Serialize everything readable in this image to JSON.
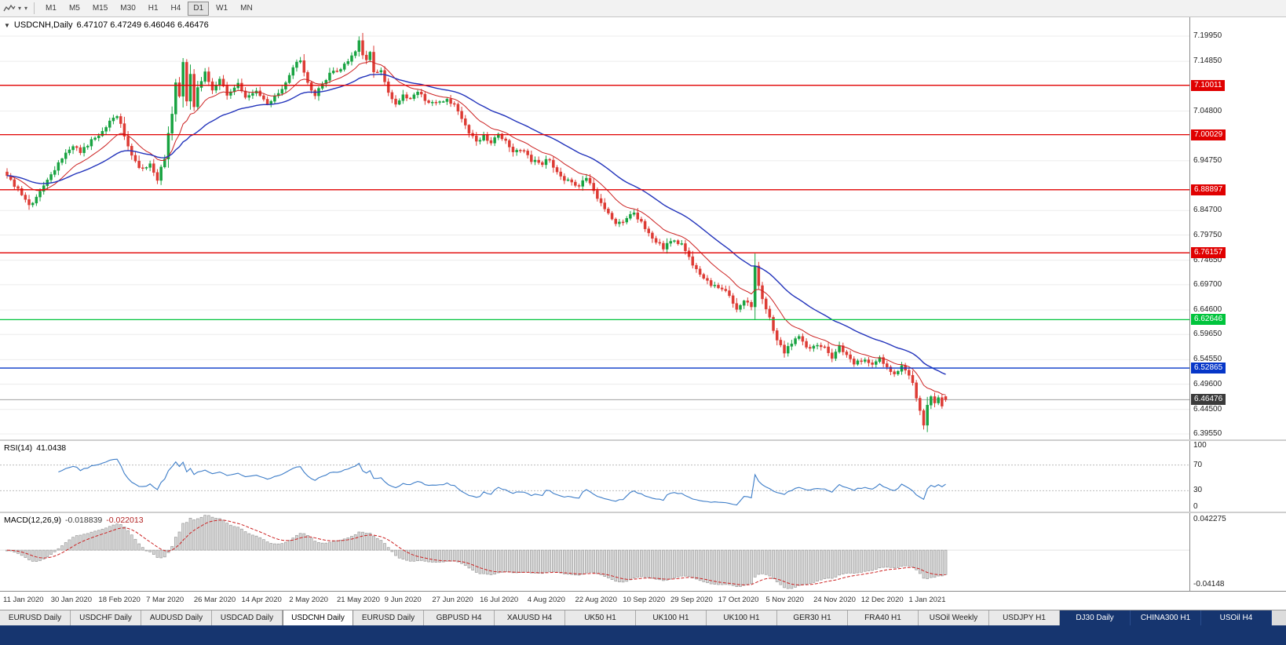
{
  "icons": {
    "caret_down": "▾",
    "collapse": "▼"
  },
  "toolbar": {
    "timeframes": [
      {
        "label": "M1",
        "active": false
      },
      {
        "label": "M5",
        "active": false
      },
      {
        "label": "M15",
        "active": false
      },
      {
        "label": "M30",
        "active": false
      },
      {
        "label": "H1",
        "active": false
      },
      {
        "label": "H4",
        "active": false
      },
      {
        "label": "D1",
        "active": true
      },
      {
        "label": "W1",
        "active": false
      },
      {
        "label": "MN",
        "active": false
      }
    ]
  },
  "symbol_line": {
    "symbol": "USDCNH,Daily",
    "ohlc": "6.47107 6.47249 6.46046 6.46476"
  },
  "price_axis": {
    "ticks": [
      "7.19950",
      "7.14850",
      "7.04800",
      "6.94750",
      "6.84700",
      "6.79750",
      "6.74650",
      "6.69700",
      "6.64600",
      "6.59650",
      "6.54550",
      "6.49600",
      "6.44500",
      "6.39550"
    ]
  },
  "hlines": [
    {
      "label": "7.10011",
      "color": "#e00000"
    },
    {
      "label": "7.00029",
      "color": "#e00000"
    },
    {
      "label": "6.88897",
      "color": "#e00000"
    },
    {
      "label": "6.76157",
      "color": "#e00000"
    },
    {
      "label": "6.62646",
      "color": "#00c43c"
    },
    {
      "label": "6.52865",
      "color": "#0636c8"
    }
  ],
  "current_price": {
    "label": "6.46476",
    "line_color": "#a0a0a0",
    "bg": "#3b3b3b"
  },
  "rsi": {
    "name": "RSI(14)",
    "value": "41.0438",
    "ticks": [
      "100",
      "70",
      "30",
      "0"
    ],
    "levels": [
      70,
      30
    ],
    "line_color": "#3d7dc8"
  },
  "macd": {
    "name": "MACD(12,26,9)",
    "value_main": "-0.018839",
    "value_signal": "-0.022013",
    "tick_top": "0.042275",
    "tick_bottom": "-0.04148",
    "bar_fill": "#d7d7d7",
    "bar_stroke": "#9b9b9b",
    "signal_color": "#cc2222"
  },
  "date_axis": {
    "labels": [
      "11 Jan 2020",
      "30 Jan 2020",
      "18 Feb 2020",
      "7 Mar 2020",
      "26 Mar 2020",
      "14 Apr 2020",
      "2 May 2020",
      "21 May 2020",
      "9 Jun 2020",
      "27 Jun 2020",
      "16 Jul 2020",
      "4 Aug 2020",
      "22 Aug 2020",
      "10 Sep 2020",
      "29 Sep 2020",
      "17 Oct 2020",
      "5 Nov 2020",
      "24 Nov 2020",
      "12 Dec 2020",
      "1 Jan 2021"
    ]
  },
  "tabs": [
    {
      "label": "EURUSD Daily",
      "active": false,
      "dark": false
    },
    {
      "label": "USDCHF Daily",
      "active": false,
      "dark": false
    },
    {
      "label": "AUDUSD Daily",
      "active": false,
      "dark": false
    },
    {
      "label": "USDCAD Daily",
      "active": false,
      "dark": false
    },
    {
      "label": "USDCNH Daily",
      "active": true,
      "dark": false
    },
    {
      "label": "EURUSD Daily",
      "active": false,
      "dark": false
    },
    {
      "label": "GBPUSD H4",
      "active": false,
      "dark": false
    },
    {
      "label": "XAUUSD H4",
      "active": false,
      "dark": false
    },
    {
      "label": "UK50 H1",
      "active": false,
      "dark": false
    },
    {
      "label": "UK100 H1",
      "active": false,
      "dark": false
    },
    {
      "label": "UK100 H1",
      "active": false,
      "dark": false
    },
    {
      "label": "GER30 H1",
      "active": false,
      "dark": false
    },
    {
      "label": "FRA40 H1",
      "active": false,
      "dark": false
    },
    {
      "label": "USOil Weekly",
      "active": false,
      "dark": false
    },
    {
      "label": "USDJPY H1",
      "active": false,
      "dark": false
    },
    {
      "label": "DJ30 Daily",
      "active": false,
      "dark": true
    },
    {
      "label": "CHINA300 H1",
      "active": false,
      "dark": true
    },
    {
      "label": "USOil H4",
      "active": false,
      "dark": true
    }
  ],
  "chart_data": {
    "type": "candlestick",
    "symbol": "USDCNH",
    "timeframe": "Daily",
    "title": "USDCNH,Daily",
    "last_ohlc_display": {
      "open": "6.47107",
      "high": "6.47249",
      "low": "6.46046",
      "close": "6.46476"
    },
    "price_range": [
      6.3844,
      7.2376
    ],
    "y_ticks": [
      7.1995,
      7.1485,
      7.048,
      6.9475,
      6.847,
      6.7975,
      6.7465,
      6.697,
      6.646,
      6.5965,
      6.5455,
      6.496,
      6.445,
      6.3955
    ],
    "hlines": [
      7.10011,
      7.00029,
      6.88897,
      6.76157,
      6.62646,
      6.52865
    ],
    "current_price": 6.46476,
    "candle_count": 257,
    "candles_per_date_label": 13,
    "close_keypoints": [
      [
        0,
        6.915
      ],
      [
        2,
        6.898
      ],
      [
        4,
        6.878
      ],
      [
        6,
        6.856
      ],
      [
        8,
        6.872
      ],
      [
        10,
        6.9
      ],
      [
        13,
        6.932
      ],
      [
        16,
        6.96
      ],
      [
        18,
        6.976
      ],
      [
        20,
        6.966
      ],
      [
        23,
        6.988
      ],
      [
        26,
        7.004
      ],
      [
        28,
        7.028
      ],
      [
        30,
        7.04
      ],
      [
        32,
        7.0
      ],
      [
        34,
        6.962
      ],
      [
        36,
        6.935
      ],
      [
        39,
        6.938
      ],
      [
        41,
        6.908
      ],
      [
        43,
        6.955
      ],
      [
        45,
        7.045
      ],
      [
        46,
        7.105
      ],
      [
        47,
        7.075
      ],
      [
        48,
        7.15
      ],
      [
        49,
        7.07
      ],
      [
        50,
        7.125
      ],
      [
        51,
        7.055
      ],
      [
        52,
        7.095
      ],
      [
        54,
        7.125
      ],
      [
        56,
        7.088
      ],
      [
        58,
        7.112
      ],
      [
        60,
        7.082
      ],
      [
        63,
        7.102
      ],
      [
        65,
        7.072
      ],
      [
        68,
        7.088
      ],
      [
        71,
        7.062
      ],
      [
        74,
        7.082
      ],
      [
        76,
        7.105
      ],
      [
        78,
        7.138
      ],
      [
        80,
        7.152
      ],
      [
        82,
        7.102
      ],
      [
        84,
        7.082
      ],
      [
        86,
        7.102
      ],
      [
        88,
        7.122
      ],
      [
        91,
        7.132
      ],
      [
        93,
        7.152
      ],
      [
        95,
        7.172
      ],
      [
        96,
        7.188
      ],
      [
        97,
        7.162
      ],
      [
        98,
        7.148
      ],
      [
        99,
        7.168
      ],
      [
        100,
        7.128
      ],
      [
        102,
        7.132
      ],
      [
        104,
        7.082
      ],
      [
        106,
        7.062
      ],
      [
        108,
        7.078
      ],
      [
        110,
        7.072
      ],
      [
        112,
        7.088
      ],
      [
        114,
        7.072
      ],
      [
        117,
        7.062
      ],
      [
        120,
        7.072
      ],
      [
        122,
        7.058
      ],
      [
        124,
        7.032
      ],
      [
        126,
        7.002
      ],
      [
        128,
        6.988
      ],
      [
        130,
        6.998
      ],
      [
        132,
        6.982
      ],
      [
        134,
        7.002
      ],
      [
        136,
        6.988
      ],
      [
        138,
        6.962
      ],
      [
        140,
        6.972
      ],
      [
        143,
        6.948
      ],
      [
        146,
        6.942
      ],
      [
        148,
        6.952
      ],
      [
        150,
        6.922
      ],
      [
        152,
        6.908
      ],
      [
        156,
        6.898
      ],
      [
        158,
        6.912
      ],
      [
        160,
        6.888
      ],
      [
        162,
        6.862
      ],
      [
        164,
        6.838
      ],
      [
        166,
        6.818
      ],
      [
        169,
        6.832
      ],
      [
        171,
        6.842
      ],
      [
        173,
        6.822
      ],
      [
        175,
        6.802
      ],
      [
        177,
        6.782
      ],
      [
        179,
        6.772
      ],
      [
        182,
        6.788
      ],
      [
        184,
        6.778
      ],
      [
        186,
        6.752
      ],
      [
        188,
        6.728
      ],
      [
        190,
        6.712
      ],
      [
        192,
        6.698
      ],
      [
        195,
        6.692
      ],
      [
        197,
        6.672
      ],
      [
        199,
        6.648
      ],
      [
        201,
        6.662
      ],
      [
        203,
        6.655
      ],
      [
        204,
        6.732
      ],
      [
        205,
        6.698
      ],
      [
        206,
        6.668
      ],
      [
        208,
        6.632
      ],
      [
        210,
        6.582
      ],
      [
        212,
        6.562
      ],
      [
        214,
        6.578
      ],
      [
        216,
        6.592
      ],
      [
        218,
        6.568
      ],
      [
        221,
        6.578
      ],
      [
        223,
        6.568
      ],
      [
        225,
        6.552
      ],
      [
        227,
        6.572
      ],
      [
        229,
        6.558
      ],
      [
        231,
        6.538
      ],
      [
        234,
        6.542
      ],
      [
        236,
        6.532
      ],
      [
        238,
        6.548
      ],
      [
        240,
        6.528
      ],
      [
        242,
        6.518
      ],
      [
        244,
        6.532
      ],
      [
        246,
        6.512
      ],
      [
        247,
        6.502
      ],
      [
        248,
        6.468
      ],
      [
        249,
        6.442
      ],
      [
        250,
        6.415
      ],
      [
        251,
        6.452
      ],
      [
        252,
        6.468
      ],
      [
        253,
        6.458
      ],
      [
        254,
        6.472
      ],
      [
        255,
        6.452
      ],
      [
        256,
        6.465
      ]
    ],
    "last_candle": [
      6.47107,
      6.47249,
      6.46046,
      6.46476
    ],
    "up_color": "#18a341",
    "down_color": "#dd3b34",
    "ma_fast": {
      "period": 13,
      "color": "#cc2222"
    },
    "ma_slow": {
      "period": 34,
      "color": "#2233bb"
    },
    "rsi_period": 14,
    "rsi_last": 41.0438,
    "macd_params": [
      12,
      26,
      9
    ],
    "macd_last": -0.018839,
    "macd_signal_last": -0.022013
  }
}
